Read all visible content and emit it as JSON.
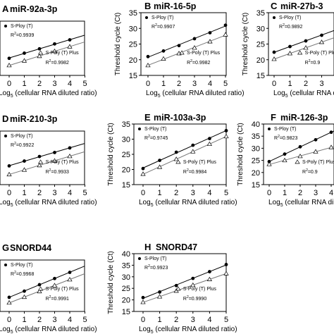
{
  "figure": {
    "x_label_prefix": "Log",
    "x_label_sub": "5",
    "x_label_suffix": " (cellular RNA diluted ratio)",
    "y_label": "Threshold cycle (Ct)",
    "series_names": [
      "S-Ploy (T)",
      "S-Poly (T) Plus"
    ]
  },
  "chart_data": [
    {
      "type": "scatter",
      "letter": "A",
      "title": "miR-92a-3p",
      "xlim": [
        0,
        5
      ],
      "ylim": [
        15,
        35
      ],
      "x_ticks": [
        0,
        1,
        2,
        3,
        4,
        5
      ],
      "y_ticks": [],
      "series": [
        {
          "name": "S-Ploy (T)",
          "marker": "filled-circle",
          "x": [
            0,
            1,
            2,
            3,
            4,
            5
          ],
          "y": [
            21.3,
            23.2,
            24.8,
            26.6,
            28.1,
            29.8
          ],
          "r2_label": "R",
          "r2_value": "=0.9939"
        },
        {
          "name": "S-Poly (T) Plus",
          "marker": "open-triangle",
          "x": [
            0,
            1,
            2,
            3,
            4,
            5
          ],
          "y": [
            18.7,
            20.4,
            22.1,
            23.9,
            25.6,
            27.4
          ],
          "r2_label": "R",
          "r2_value": "=0.9982"
        }
      ]
    },
    {
      "type": "scatter",
      "letter": "B",
      "title": "miR-16-5p",
      "xlim": [
        0,
        5
      ],
      "ylim": [
        15,
        35
      ],
      "x_ticks": [
        0,
        1,
        2,
        3,
        4,
        5
      ],
      "y_ticks": [
        15,
        20,
        25,
        30,
        35
      ],
      "series": [
        {
          "name": "S-Ploy (T)",
          "marker": "filled-circle",
          "x": [
            0,
            1,
            2,
            3,
            4,
            5
          ],
          "y": [
            21.0,
            22.8,
            24.5,
            26.7,
            28.6,
            31.0
          ],
          "r2_label": "R",
          "r2_value": "=0.9907"
        },
        {
          "name": "S-Poly (T) Plus",
          "marker": "open-triangle",
          "x": [
            0,
            1,
            2,
            3,
            4,
            5
          ],
          "y": [
            18.2,
            20.3,
            22.0,
            23.8,
            25.8,
            28.0
          ],
          "r2_label": "R",
          "r2_value": "=0.9982"
        }
      ]
    },
    {
      "type": "scatter",
      "letter": "C",
      "title": "miR-27b-3",
      "xlim": [
        0,
        5
      ],
      "ylim": [
        15,
        35
      ],
      "x_ticks": [
        0,
        1,
        2,
        3,
        4
      ],
      "y_ticks": [
        15,
        20,
        25,
        30,
        35
      ],
      "series": [
        {
          "name": "S-Ploy (T)",
          "marker": "filled-circle",
          "x": [
            0,
            1,
            2,
            3,
            4
          ],
          "y": [
            22.4,
            24.2,
            26.0,
            27.8,
            29.8
          ],
          "r2_label": "R",
          "r2_value": "=0.9892"
        },
        {
          "name": "S-Poly (T) Plus",
          "marker": "open-triangle",
          "x": [
            0,
            1,
            2,
            3,
            4
          ],
          "y": [
            20.2,
            22.0,
            23.8,
            25.6,
            27.4
          ],
          "r2_label": "R",
          "r2_value": "=0.9"
        }
      ]
    },
    {
      "type": "scatter",
      "letter": "D",
      "title": "miR-210-3p",
      "xlim": [
        0,
        5
      ],
      "ylim": [
        15,
        35
      ],
      "x_ticks": [
        0,
        1,
        2,
        3,
        4,
        5
      ],
      "y_ticks": [],
      "series": [
        {
          "name": "S-Ploy (T)",
          "marker": "filled-circle",
          "x": [
            0,
            1,
            2,
            3,
            4,
            5
          ],
          "y": [
            22.0,
            23.8,
            25.5,
            27.0,
            28.7,
            30.4
          ],
          "r2_label": "R",
          "r2_value": "=0.9922"
        },
        {
          "name": "S-Poly (T) Plus",
          "marker": "open-triangle",
          "x": [
            0,
            1,
            2,
            3,
            4,
            5
          ],
          "y": [
            18.8,
            20.5,
            22.2,
            23.9,
            25.6,
            27.3
          ],
          "r2_label": "R",
          "r2_value": "=0.9933"
        }
      ]
    },
    {
      "type": "scatter",
      "letter": "E",
      "title": "miR-103a-3p",
      "xlim": [
        0,
        5
      ],
      "ylim": [
        15,
        35
      ],
      "x_ticks": [
        0,
        1,
        2,
        3,
        4,
        5
      ],
      "y_ticks": [
        15,
        20,
        25,
        30,
        35
      ],
      "series": [
        {
          "name": "S-Ploy (T)",
          "marker": "filled-circle",
          "x": [
            0,
            1,
            2,
            3,
            4,
            5
          ],
          "y": [
            20.3,
            23.0,
            25.7,
            28.0,
            30.2,
            32.8
          ],
          "r2_label": "R",
          "r2_value": "=0.9745"
        },
        {
          "name": "S-Poly (T) Plus",
          "marker": "open-triangle",
          "x": [
            0,
            1,
            2,
            3,
            4,
            5
          ],
          "y": [
            18.5,
            20.8,
            23.4,
            25.9,
            28.4,
            30.9
          ],
          "r2_label": "R",
          "r2_value": "=0.9984"
        }
      ]
    },
    {
      "type": "scatter",
      "letter": "F",
      "title": "miR-126-3p",
      "xlim": [
        0,
        4.8
      ],
      "ylim": [
        15,
        40
      ],
      "x_ticks": [
        0,
        1,
        2,
        3,
        4
      ],
      "y_ticks": [
        15,
        20,
        25,
        30,
        35,
        40
      ],
      "series": [
        {
          "name": "S-Ploy (T)",
          "marker": "filled-circle",
          "x": [
            0,
            1,
            2,
            3,
            4
          ],
          "y": [
            24.5,
            27.6,
            30.6,
            33.5,
            36.6
          ],
          "r2_label": "R",
          "r2_value": "=0.9823"
        },
        {
          "name": "S-Poly (T) Plus",
          "marker": "open-triangle",
          "x": [
            0,
            1,
            2,
            3,
            4
          ],
          "y": [
            23.4,
            25.0,
            26.7,
            28.6,
            30.4
          ],
          "r2_label": "R",
          "r2_value": "=0.9"
        }
      ]
    },
    {
      "type": "scatter",
      "letter": "G",
      "title": "SNORD44",
      "xlim": [
        0,
        5
      ],
      "ylim": [
        15,
        35
      ],
      "x_ticks": [
        0,
        1,
        2,
        3,
        4,
        5
      ],
      "y_ticks": [],
      "series": [
        {
          "name": "S-Ploy (T)",
          "marker": "filled-circle",
          "x": [
            0,
            1,
            2,
            3,
            4,
            5
          ],
          "y": [
            20.5,
            22.9,
            25.4,
            27.8,
            30.2,
            32.7
          ],
          "r2_label": "R",
          "r2_value": "=0.9968"
        },
        {
          "name": "S-Poly (T) Plus",
          "marker": "open-triangle",
          "x": [
            0,
            1,
            2,
            3,
            4,
            5
          ],
          "y": [
            18.4,
            20.6,
            22.8,
            25.1,
            27.4,
            29.8
          ],
          "r2_label": "R",
          "r2_value": "=0.9991"
        }
      ]
    },
    {
      "type": "scatter",
      "letter": "H",
      "title": "SNORD47",
      "xlim": [
        0,
        5
      ],
      "ylim": [
        15,
        40
      ],
      "x_ticks": [
        0,
        1,
        2,
        3,
        4,
        5
      ],
      "y_ticks": [
        15,
        20,
        25,
        30,
        35,
        40
      ],
      "series": [
        {
          "name": "S-Ploy (T)",
          "marker": "filled-circle",
          "x": [
            0,
            1,
            2,
            3,
            4,
            5
          ],
          "y": [
            21.0,
            23.4,
            26.2,
            29.3,
            32.2,
            35.3
          ],
          "r2_label": "R",
          "r2_value": "=0.9923"
        },
        {
          "name": "S-Poly (T) Plus",
          "marker": "open-triangle",
          "x": [
            0,
            1,
            2,
            3,
            4,
            5
          ],
          "y": [
            19.0,
            21.4,
            23.9,
            26.4,
            28.9,
            31.4
          ],
          "r2_label": "R",
          "r2_value": "=0.9990"
        }
      ]
    }
  ]
}
